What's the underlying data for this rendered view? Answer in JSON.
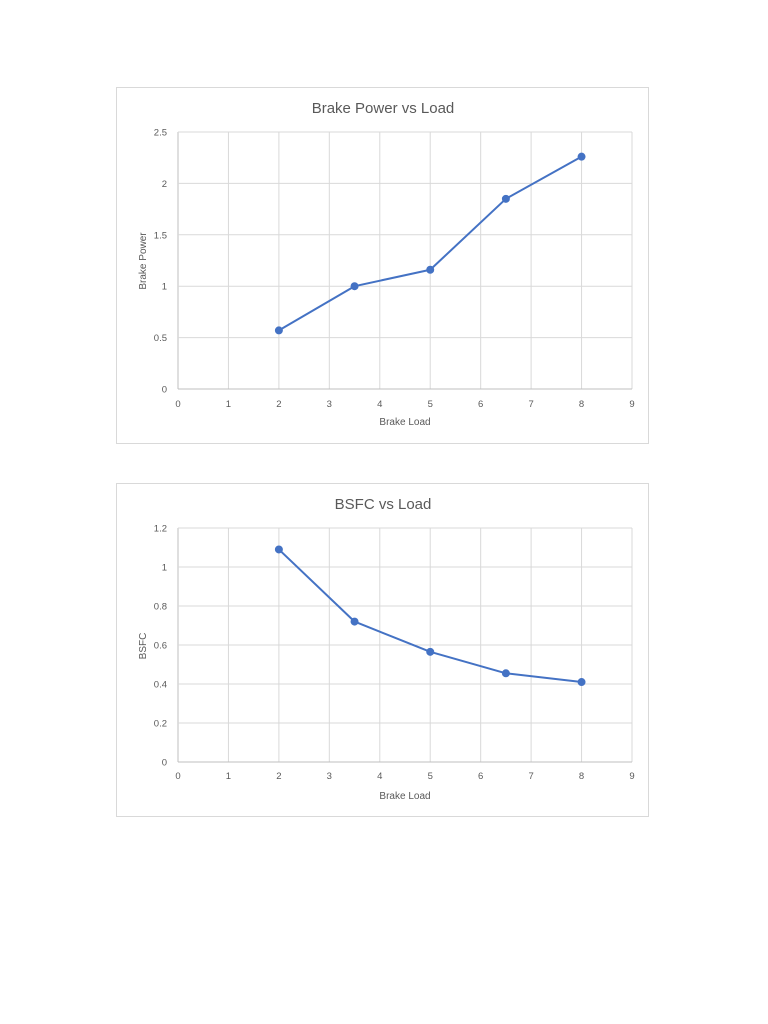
{
  "chart_data": [
    {
      "type": "line",
      "title": "Brake Power vs Load",
      "xlabel": "Brake Load",
      "ylabel": "Brake Power",
      "xlim": [
        0,
        9
      ],
      "ylim": [
        0,
        2.5
      ],
      "xticks": [
        0,
        1,
        2,
        3,
        4,
        5,
        6,
        7,
        8,
        9
      ],
      "yticks": [
        "0",
        "0.5",
        "1",
        "1.5",
        "2",
        "2.5"
      ],
      "grid": true,
      "legend": "none",
      "color": "#4472c4",
      "x": [
        2,
        3.5,
        5,
        6.5,
        8
      ],
      "y": [
        0.57,
        1.0,
        1.16,
        1.85,
        2.26
      ]
    },
    {
      "type": "line",
      "title": "BSFC vs Load",
      "xlabel": "Brake Load",
      "ylabel": "BSFC",
      "xlim": [
        0,
        9
      ],
      "ylim": [
        0,
        1.2
      ],
      "xticks": [
        0,
        1,
        2,
        3,
        4,
        5,
        6,
        7,
        8,
        9
      ],
      "yticks": [
        "0",
        "0.2",
        "0.4",
        "0.6",
        "0.8",
        "1",
        "1.2"
      ],
      "grid": true,
      "legend": "none",
      "color": "#4472c4",
      "x": [
        2,
        3.5,
        5,
        6.5,
        8
      ],
      "y": [
        1.09,
        0.72,
        0.565,
        0.455,
        0.41
      ]
    }
  ]
}
